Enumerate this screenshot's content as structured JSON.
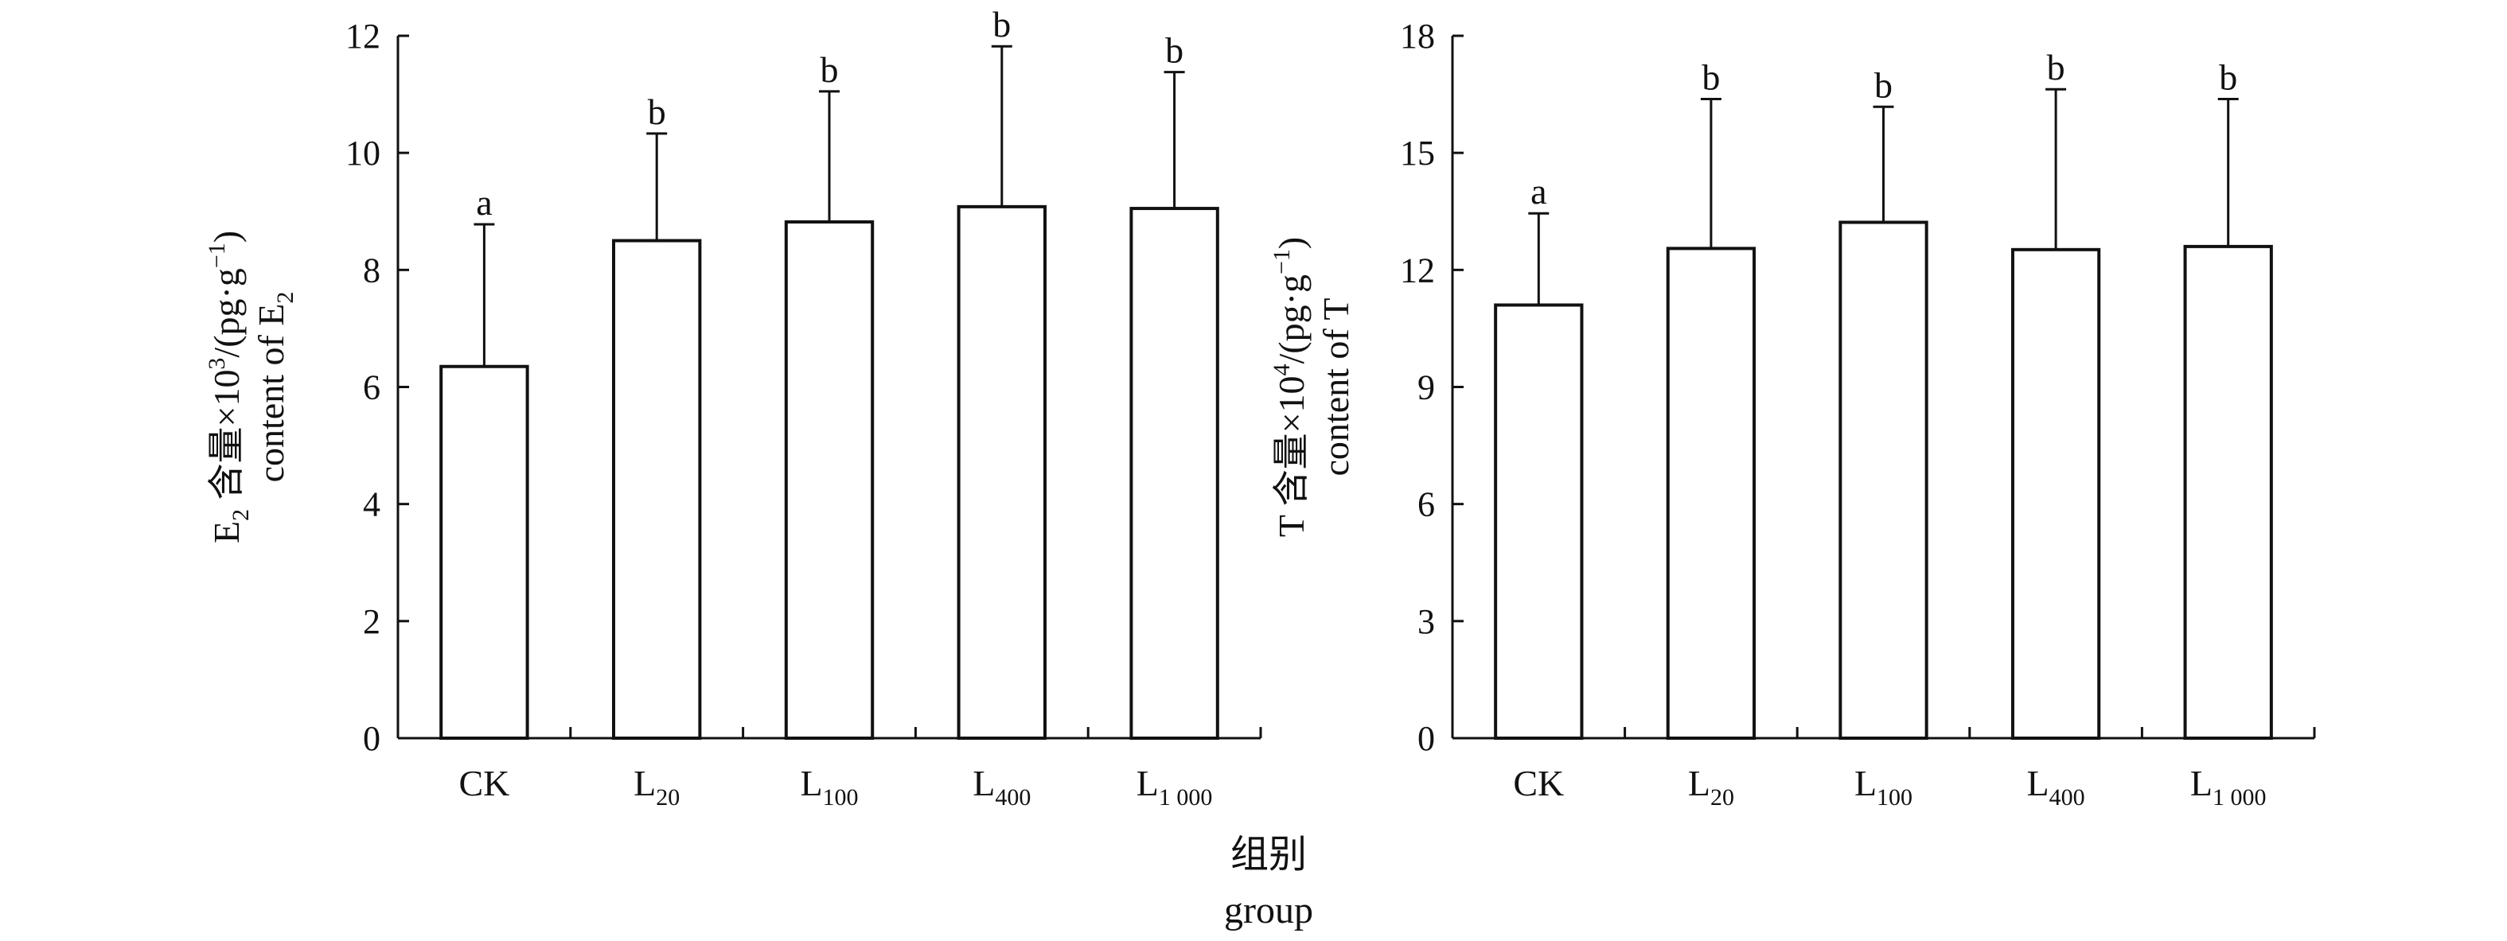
{
  "x_axis_label": {
    "zh": "组别",
    "en": "group"
  },
  "chart_data": [
    {
      "type": "bar",
      "ylabel": {
        "zh_main": "E",
        "zh_sub": "2",
        "zh_rest": " 含量×10",
        "zh_sup": "3",
        "zh_unit": "/(pg·g",
        "zh_unit_sup": "−1",
        "zh_close": ")",
        "en_main": "content of E",
        "en_sub": "2"
      },
      "ylim": [
        0,
        12
      ],
      "yticks": [
        "0",
        "2",
        "4",
        "6",
        "8",
        "10",
        "12"
      ],
      "categories": [
        {
          "main": "CK",
          "sub": ""
        },
        {
          "main": "L",
          "sub": "20"
        },
        {
          "main": "L",
          "sub": "100"
        },
        {
          "main": "L",
          "sub": "400"
        },
        {
          "main": "L",
          "sub": "1 000"
        }
      ],
      "values": [
        6.35,
        8.5,
        8.82,
        9.08,
        9.05
      ],
      "error_upper": [
        8.78,
        10.33,
        11.05,
        11.82,
        11.38
      ],
      "significance": [
        "a",
        "b",
        "b",
        "b",
        "b"
      ]
    },
    {
      "type": "bar",
      "ylabel": {
        "zh_main": "T",
        "zh_sub": "",
        "zh_rest": " 含量×10",
        "zh_sup": "4",
        "zh_unit": "/(pg·g",
        "zh_unit_sup": "−1",
        "zh_close": ")",
        "en_main": "content of T",
        "en_sub": ""
      },
      "ylim": [
        0,
        18
      ],
      "yticks": [
        "0",
        "3",
        "6",
        "9",
        "12",
        "15",
        "18"
      ],
      "categories": [
        {
          "main": "CK",
          "sub": ""
        },
        {
          "main": "L",
          "sub": "20"
        },
        {
          "main": "L",
          "sub": "100"
        },
        {
          "main": "L",
          "sub": "400"
        },
        {
          "main": "L",
          "sub": "1 000"
        }
      ],
      "values": [
        11.1,
        12.55,
        13.22,
        12.52,
        12.6
      ],
      "error_upper": [
        13.45,
        16.38,
        16.18,
        16.63,
        16.38
      ],
      "significance": [
        "a",
        "b",
        "b",
        "b",
        "b"
      ]
    }
  ]
}
